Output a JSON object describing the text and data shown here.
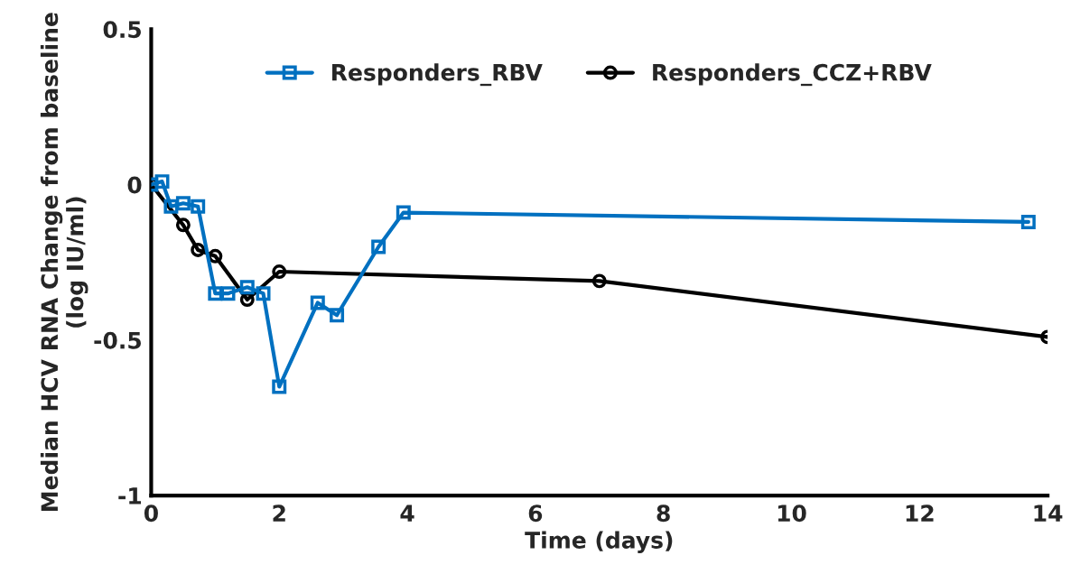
{
  "chart_data": {
    "type": "line",
    "xlabel": "Time (days)",
    "ylabel": "Median HCV RNA Change from baseline (log IU/ml)",
    "xlim": [
      0,
      14
    ],
    "xticks": [
      0,
      2,
      4,
      6,
      8,
      10,
      12,
      14
    ],
    "ylim": [
      -1,
      0.5
    ],
    "yticks": [
      -1,
      -0.5,
      0,
      0.5
    ],
    "series": [
      {
        "name": "Responders_RBV",
        "color": "#0070c0",
        "marker": "square",
        "x": [
          0,
          0.17,
          0.31,
          0.5,
          0.73,
          1.0,
          1.2,
          1.5,
          1.75,
          2.0,
          2.6,
          2.9,
          3.55,
          3.94,
          13.7
        ],
        "values": [
          0,
          0.01,
          -0.07,
          -0.06,
          -0.07,
          -0.35,
          -0.35,
          -0.33,
          -0.35,
          -0.65,
          -0.38,
          -0.42,
          -0.2,
          -0.09,
          -0.12
        ]
      },
      {
        "name": "Responders_CCZ+RBV",
        "color": "#000000",
        "marker": "circle",
        "x": [
          0,
          0.5,
          0.73,
          1.0,
          1.5,
          2.0,
          7.0,
          14.0
        ],
        "values": [
          0,
          -0.13,
          -0.21,
          -0.23,
          -0.37,
          -0.28,
          -0.31,
          -0.49
        ]
      }
    ],
    "legend": "top",
    "grid": false
  }
}
